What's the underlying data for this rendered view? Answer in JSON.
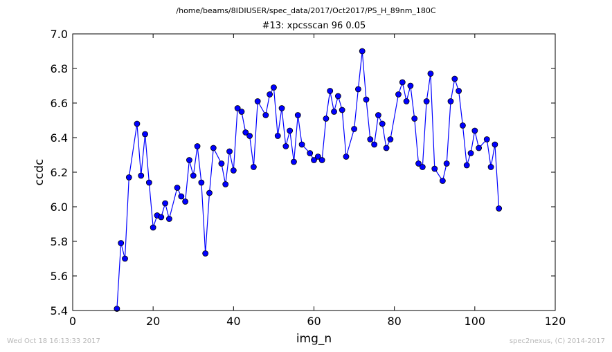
{
  "suptitle": "/home/beams/8IDIUSER/spec_data/2017/Oct2017/PS_H_89nm_180C",
  "footer": {
    "left": "Wed Oct 18 16:13:33 2017",
    "right": "spec2nexus, (C) 2014-2017"
  },
  "chart_data": {
    "type": "line",
    "title": "#13: xpcsscan 96 0.05",
    "xlabel": "img_n",
    "ylabel": "ccdc",
    "xlim": [
      0,
      120
    ],
    "ylim": [
      5.4,
      7.0
    ],
    "xticks": [
      0,
      20,
      40,
      60,
      80,
      100,
      120
    ],
    "yticks": [
      5.4,
      5.6,
      5.8,
      6.0,
      6.2,
      6.4,
      6.6,
      6.8,
      7.0
    ],
    "grid": false,
    "marker": "circle",
    "line_color": "#0000ff",
    "series": [
      {
        "x": [
          11,
          12,
          13,
          14,
          16,
          17,
          18,
          19,
          20,
          21,
          22,
          23,
          24,
          26,
          27,
          28,
          29,
          30,
          31,
          32,
          33,
          34,
          35,
          37,
          38,
          39,
          40,
          41,
          42,
          43,
          44,
          45,
          46,
          48,
          49,
          50,
          51,
          52,
          53,
          54,
          55,
          56,
          57,
          59,
          60,
          61,
          62,
          63,
          64,
          65,
          66,
          67,
          68,
          70,
          71,
          72,
          73,
          74,
          75,
          76,
          77,
          78,
          79,
          81,
          82,
          83,
          84,
          85,
          86,
          87,
          88,
          89,
          90,
          92,
          93,
          94,
          95,
          96,
          97,
          98,
          99,
          100,
          101,
          103,
          104,
          105,
          106
        ],
        "y": [
          5.41,
          5.79,
          5.7,
          6.17,
          6.48,
          6.18,
          6.42,
          6.14,
          5.88,
          5.95,
          5.94,
          6.02,
          5.93,
          6.11,
          6.06,
          6.03,
          6.27,
          6.18,
          6.35,
          6.14,
          5.73,
          6.08,
          6.34,
          6.25,
          6.13,
          6.32,
          6.21,
          6.57,
          6.55,
          6.43,
          6.41,
          6.23,
          6.61,
          6.53,
          6.65,
          6.69,
          6.41,
          6.57,
          6.35,
          6.44,
          6.26,
          6.53,
          6.36,
          6.31,
          6.27,
          6.29,
          6.27,
          6.51,
          6.67,
          6.55,
          6.64,
          6.56,
          6.29,
          6.45,
          6.68,
          6.9,
          6.62,
          6.39,
          6.36,
          6.53,
          6.48,
          6.34,
          6.39,
          6.65,
          6.72,
          6.61,
          6.7,
          6.51,
          6.25,
          6.23,
          6.61,
          6.77,
          6.22,
          6.15,
          6.25,
          6.61,
          6.74,
          6.67,
          6.47,
          6.24,
          6.31,
          6.44,
          6.34,
          6.39,
          6.23,
          6.36,
          5.99
        ]
      }
    ]
  }
}
